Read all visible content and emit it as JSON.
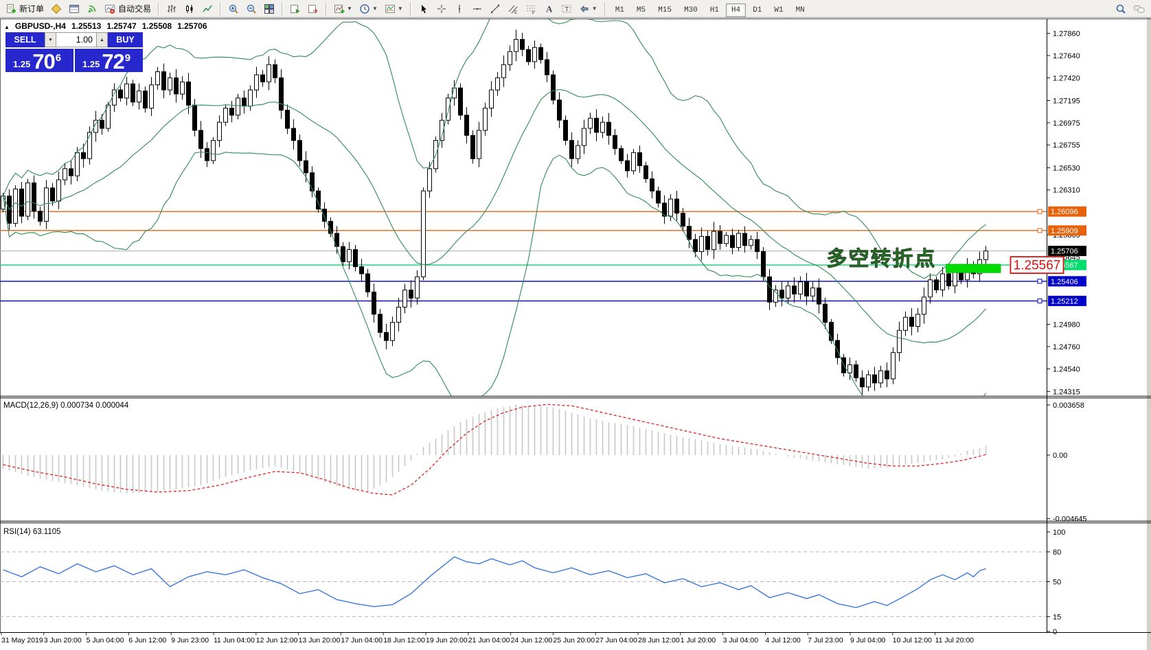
{
  "toolbar": {
    "new_order": "新订单",
    "auto_trading": "自动交易",
    "timeframes": [
      "M1",
      "M5",
      "M15",
      "M30",
      "H1",
      "H4",
      "D1",
      "W1",
      "MN"
    ],
    "active_timeframe": "H4",
    "icons": [
      "new-order",
      "market-watch",
      "data-window",
      "signals",
      "auto-trading",
      "bar-chart",
      "candlestick-chart",
      "line-chart",
      "zoom-in",
      "zoom-out",
      "tile-windows",
      "auto-scroll",
      "chart-shift",
      "indicators",
      "periods",
      "templates",
      "cursor",
      "crosshair",
      "vertical-line",
      "horizontal-line",
      "trendline",
      "equidistant-channel",
      "fibonacci",
      "text",
      "text-label",
      "arrows",
      "search",
      "chat"
    ]
  },
  "header": {
    "symbol": "GBPUSD-,H4",
    "open": "1.25513",
    "high": "1.25747",
    "low": "1.25508",
    "close": "1.25706"
  },
  "trade_panel": {
    "sell": "SELL",
    "buy": "BUY",
    "volume": "1.00",
    "sell_small": "1.25",
    "sell_big": "70",
    "sell_sup": "6",
    "buy_small": "1.25",
    "buy_big": "72",
    "buy_sup": "9"
  },
  "chart_data": {
    "type": "candlestick",
    "symbol": "GBPUSD-",
    "timeframe": "H4",
    "ohlc_display": {
      "open": 1.25513,
      "high": 1.25747,
      "low": 1.25508,
      "close": 1.25706
    },
    "price_axis": {
      "range": [
        1.2427,
        1.28
      ],
      "ticks": [
        1.2786,
        1.2764,
        1.2742,
        1.27195,
        1.26975,
        1.26755,
        1.2653,
        1.2631,
        1.25865,
        1.25645,
        1.2498,
        1.2476,
        1.2454,
        1.24315
      ]
    },
    "hlines": [
      {
        "label": "1.26096",
        "price": 1.26096,
        "color": "#E8620C",
        "type": "resistance"
      },
      {
        "label": "1.25909",
        "price": 1.25909,
        "color": "#E8620C",
        "type": "resistance"
      },
      {
        "label": "1.25706",
        "price": 1.25706,
        "color": "#ABABAB",
        "type": "current-price",
        "tag_bg": "#000000"
      },
      {
        "label": "1.25567",
        "price": 1.25567,
        "color": "#00DC6E",
        "type": "support"
      },
      {
        "label": "1.25406",
        "price": 1.25406,
        "color": "#0000C8",
        "type": "support"
      },
      {
        "label": "1.25212",
        "price": 1.25212,
        "color": "#0000C8",
        "type": "support"
      }
    ],
    "candles": {
      "up_color": "#FFFFFF",
      "down_color": "#000000",
      "wick": 0.0008,
      "first_open": 1.2612,
      "closes": [
        1.2625,
        1.2598,
        1.2632,
        1.2605,
        1.2638,
        1.261,
        1.26,
        1.2633,
        1.262,
        1.2641,
        1.2652,
        1.2645,
        1.2668,
        1.2662,
        1.2688,
        1.27,
        1.2692,
        1.2715,
        1.273,
        1.2722,
        1.2736,
        1.2718,
        1.2729,
        1.2712,
        1.2735,
        1.2748,
        1.273,
        1.2742,
        1.2726,
        1.2738,
        1.2715,
        1.269,
        1.2672,
        1.266,
        1.268,
        1.2698,
        1.2712,
        1.2705,
        1.2722,
        1.2714,
        1.273,
        1.2745,
        1.2738,
        1.2755,
        1.2742,
        1.271,
        1.2692,
        1.268,
        1.266,
        1.2648,
        1.263,
        1.2612,
        1.26,
        1.2588,
        1.2575,
        1.256,
        1.2572,
        1.2555,
        1.2548,
        1.253,
        1.2508,
        1.249,
        1.2482,
        1.25,
        1.2515,
        1.2532,
        1.2524,
        1.2545,
        1.263,
        1.2652,
        1.268,
        1.27,
        1.2722,
        1.2732,
        1.2705,
        1.2685,
        1.2662,
        1.269,
        1.2712,
        1.273,
        1.2742,
        1.2755,
        1.2768,
        1.278,
        1.277,
        1.2758,
        1.2772,
        1.276,
        1.2745,
        1.272,
        1.27,
        1.268,
        1.2662,
        1.2675,
        1.2692,
        1.2702,
        1.2688,
        1.2698,
        1.2685,
        1.2672,
        1.266,
        1.265,
        1.2668,
        1.2655,
        1.2642,
        1.263,
        1.2618,
        1.2605,
        1.2622,
        1.2608,
        1.2595,
        1.2582,
        1.257,
        1.2585,
        1.2572,
        1.259,
        1.2578,
        1.2586,
        1.2574,
        1.2588,
        1.2576,
        1.2582,
        1.257,
        1.2545,
        1.252,
        1.2532,
        1.2524,
        1.2536,
        1.2528,
        1.254,
        1.2526,
        1.2534,
        1.2518,
        1.25,
        1.2482,
        1.2465,
        1.245,
        1.2458,
        1.2445,
        1.2436,
        1.2448,
        1.244,
        1.2452,
        1.2444,
        1.247,
        1.2492,
        1.2505,
        1.2496,
        1.2508,
        1.2525,
        1.2542,
        1.2532,
        1.2548,
        1.2536,
        1.255,
        1.2542,
        1.2556,
        1.2548,
        1.2562,
        1.25706
      ]
    },
    "bollinger": {
      "period": 20,
      "deviation": 2,
      "color": "#2E8B57"
    },
    "annotation": {
      "text": "多空转折点",
      "color": "#00C800",
      "price": 1.2556,
      "end_index": 151
    },
    "highlight": {
      "from_index": 153,
      "to_index": 161.4,
      "price_top": 1.25575,
      "price_bottom": 1.2549,
      "color": "#00DC00"
    },
    "callout": {
      "text": "1.25567",
      "color": "#E01010",
      "price": 1.25567
    },
    "time_axis": [
      "31 May 2019",
      "3 Jun 20:00",
      "5 Jun 04:00",
      "6 Jun 12:00",
      "9 Jun 23:00",
      "11 Jun 04:00",
      "12 Jun 12:00",
      "13 Jun 20:00",
      "17 Jun 04:00",
      "18 Jun 12:00",
      "19 Jun 20:00",
      "21 Jun 04:00",
      "24 Jun 12:00",
      "25 Jun 20:00",
      "27 Jun 04:00",
      "28 Jun 12:00",
      "1 Jul 20:00",
      "3 Jul 04:00",
      "4 Jul 12:00",
      "7 Jul 23:00",
      "9 Jul 04:00",
      "10 Jul 12:00",
      "11 Jul 20:00"
    ],
    "macd": {
      "label": "MACD(12,26,9)",
      "values_text": "0.000734 0.000044",
      "hist_color": "#C8C8C8",
      "signal_color": "#E02020",
      "axis_ticks": [
        {
          "v": 0.003658,
          "t": "0.003658"
        },
        {
          "v": 0,
          "t": "0.00"
        },
        {
          "v": -0.004645,
          "t": "-0.004645"
        }
      ],
      "hist_points": [
        [
          0,
          -0.001
        ],
        [
          4,
          -0.0015
        ],
        [
          8,
          -0.0019
        ],
        [
          12,
          -0.0022
        ],
        [
          16,
          -0.0026
        ],
        [
          20,
          -0.0028
        ],
        [
          24,
          -0.0027
        ],
        [
          28,
          -0.0025
        ],
        [
          32,
          -0.0022
        ],
        [
          36,
          -0.0016
        ],
        [
          40,
          -0.0011
        ],
        [
          44,
          -0.0008
        ],
        [
          48,
          -0.0013
        ],
        [
          52,
          -0.002
        ],
        [
          56,
          -0.0025
        ],
        [
          59,
          -0.0027
        ],
        [
          62,
          -0.002
        ],
        [
          64,
          -0.0012
        ],
        [
          66,
          -0.0004
        ],
        [
          68,
          0.0006
        ],
        [
          71,
          0.0015
        ],
        [
          74,
          0.0024
        ],
        [
          77,
          0.003
        ],
        [
          80,
          0.0034
        ],
        [
          83,
          0.0037
        ],
        [
          86,
          0.0036
        ],
        [
          89,
          0.0035
        ],
        [
          92,
          0.0031
        ],
        [
          95,
          0.0027
        ],
        [
          98,
          0.0024
        ],
        [
          101,
          0.0022
        ],
        [
          104,
          0.0019
        ],
        [
          107,
          0.0016
        ],
        [
          110,
          0.0013
        ],
        [
          113,
          0.0011
        ],
        [
          116,
          0.0008
        ],
        [
          119,
          0.0006
        ],
        [
          122,
          0.0004
        ],
        [
          125,
          0.0001
        ],
        [
          128,
          -0.0002
        ],
        [
          131,
          -0.0004
        ],
        [
          134,
          -0.0006
        ],
        [
          137,
          -0.0008
        ],
        [
          140,
          -0.001
        ],
        [
          143,
          -0.0009
        ],
        [
          146,
          -0.0007
        ],
        [
          149,
          -0.0005
        ],
        [
          152,
          -0.0003
        ],
        [
          154,
          -0.0001
        ],
        [
          156,
          0.0003
        ],
        [
          158,
          0.0005
        ],
        [
          159,
          0.0007
        ]
      ],
      "signal_points": [
        [
          0,
          -0.0007
        ],
        [
          5,
          -0.0012
        ],
        [
          10,
          -0.0016
        ],
        [
          15,
          -0.0021
        ],
        [
          20,
          -0.0025
        ],
        [
          25,
          -0.0027
        ],
        [
          30,
          -0.0026
        ],
        [
          35,
          -0.0022
        ],
        [
          40,
          -0.0016
        ],
        [
          44,
          -0.0012
        ],
        [
          48,
          -0.0013
        ],
        [
          52,
          -0.0018
        ],
        [
          56,
          -0.0024
        ],
        [
          60,
          -0.0028
        ],
        [
          63,
          -0.0029
        ],
        [
          66,
          -0.0022
        ],
        [
          69,
          -0.001
        ],
        [
          72,
          0.0004
        ],
        [
          75,
          0.0016
        ],
        [
          78,
          0.0025
        ],
        [
          81,
          0.0031
        ],
        [
          84,
          0.0035
        ],
        [
          88,
          0.0037
        ],
        [
          92,
          0.0036
        ],
        [
          96,
          0.0032
        ],
        [
          100,
          0.0028
        ],
        [
          104,
          0.0024
        ],
        [
          108,
          0.002
        ],
        [
          112,
          0.0016
        ],
        [
          116,
          0.0012
        ],
        [
          120,
          0.0009
        ],
        [
          124,
          0.0006
        ],
        [
          128,
          0.0003
        ],
        [
          132,
          0.0
        ],
        [
          136,
          -0.0003
        ],
        [
          140,
          -0.0006
        ],
        [
          144,
          -0.0008
        ],
        [
          148,
          -0.0008
        ],
        [
          152,
          -0.0006
        ],
        [
          155,
          -0.0004
        ],
        [
          157,
          -0.0002
        ],
        [
          159,
          4e-05
        ]
      ]
    },
    "rsi": {
      "label": "RSI(14)",
      "value_text": "63.1105",
      "color": "#3C78DC",
      "levels": [
        80,
        50,
        15
      ],
      "axis_ticks": [
        {
          "v": 100,
          "t": "100"
        },
        {
          "v": 80,
          "t": "80"
        },
        {
          "v": 50,
          "t": "50"
        },
        {
          "v": 15,
          "t": "15"
        },
        {
          "v": 0,
          "t": "0"
        }
      ],
      "points": [
        [
          0,
          62
        ],
        [
          3,
          55
        ],
        [
          6,
          65
        ],
        [
          9,
          58
        ],
        [
          12,
          68
        ],
        [
          15,
          60
        ],
        [
          18,
          66
        ],
        [
          21,
          57
        ],
        [
          24,
          63
        ],
        [
          27,
          45
        ],
        [
          30,
          55
        ],
        [
          33,
          60
        ],
        [
          36,
          57
        ],
        [
          39,
          62
        ],
        [
          42,
          54
        ],
        [
          45,
          48
        ],
        [
          48,
          38
        ],
        [
          51,
          42
        ],
        [
          54,
          32
        ],
        [
          57,
          28
        ],
        [
          60,
          25
        ],
        [
          63,
          27
        ],
        [
          66,
          38
        ],
        [
          69,
          55
        ],
        [
          71,
          65
        ],
        [
          73,
          75
        ],
        [
          75,
          70
        ],
        [
          77,
          68
        ],
        [
          79,
          73
        ],
        [
          82,
          67
        ],
        [
          84,
          71
        ],
        [
          86,
          64
        ],
        [
          89,
          59
        ],
        [
          92,
          64
        ],
        [
          95,
          57
        ],
        [
          98,
          61
        ],
        [
          101,
          54
        ],
        [
          104,
          58
        ],
        [
          107,
          49
        ],
        [
          110,
          53
        ],
        [
          113,
          45
        ],
        [
          116,
          49
        ],
        [
          119,
          42
        ],
        [
          121,
          46
        ],
        [
          124,
          34
        ],
        [
          127,
          39
        ],
        [
          130,
          33
        ],
        [
          132,
          37
        ],
        [
          135,
          28
        ],
        [
          138,
          24
        ],
        [
          141,
          30
        ],
        [
          143,
          26
        ],
        [
          146,
          36
        ],
        [
          148,
          43
        ],
        [
          150,
          52
        ],
        [
          152,
          57
        ],
        [
          154,
          52
        ],
        [
          156,
          59
        ],
        [
          157,
          55
        ],
        [
          158,
          61
        ],
        [
          159,
          63
        ]
      ]
    }
  }
}
